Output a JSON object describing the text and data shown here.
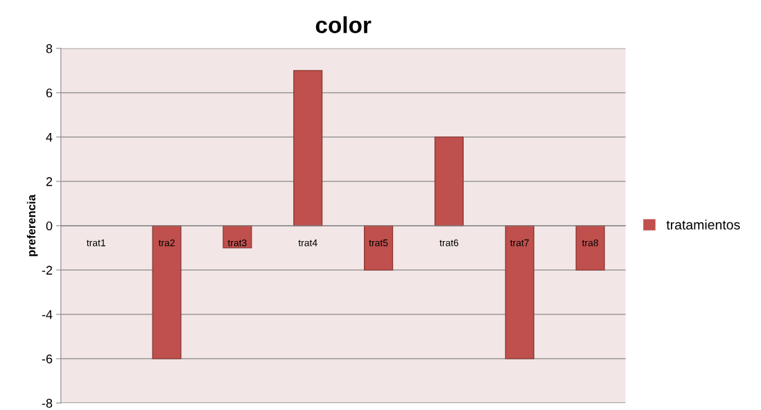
{
  "chart_data": {
    "type": "bar",
    "title": "color",
    "ylabel": "preferencia",
    "categories": [
      "trat1",
      "tra2",
      "trat3",
      "trat4",
      "trat5",
      "trat6",
      "trat7",
      "tra8"
    ],
    "series": [
      {
        "name": "tratamientos",
        "color": "#c0504d",
        "values": [
          0,
          -6,
          -1,
          7,
          -2,
          4,
          -6,
          -2
        ]
      }
    ],
    "ylim": [
      -8,
      8
    ],
    "yticks": [
      -8,
      -6,
      -4,
      -2,
      0,
      2,
      4,
      6,
      8
    ],
    "grid": "y",
    "legend": "right"
  }
}
